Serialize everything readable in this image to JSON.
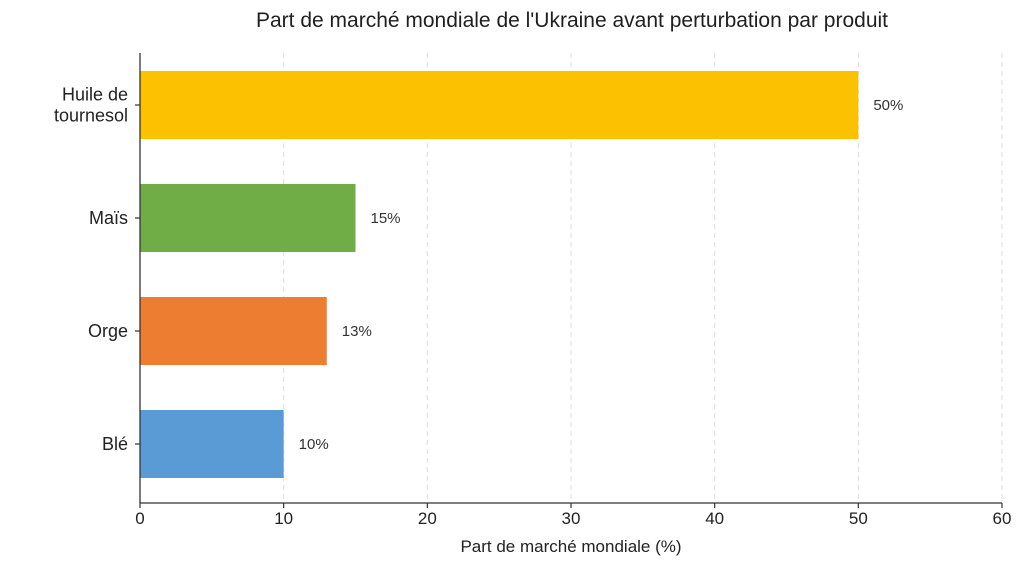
{
  "chart_data": {
    "type": "bar",
    "orientation": "horizontal",
    "title": "Part de marché mondiale de l'Ukraine avant perturbation par produit",
    "xlabel": "Part de marché mondiale (%)",
    "ylabel": "",
    "categories": [
      [
        "Huile de",
        "tournesol"
      ],
      [
        "Maïs"
      ],
      [
        "Orge"
      ],
      [
        "Blé"
      ]
    ],
    "values": [
      50,
      15,
      13,
      10
    ],
    "data_labels": [
      "50%",
      "15%",
      "13%",
      "10%"
    ],
    "colors": [
      "#fcc100",
      "#70ad47",
      "#ed7d31",
      "#5b9bd5"
    ],
    "xlim": [
      0,
      60
    ],
    "x_ticks": [
      0,
      10,
      20,
      30,
      40,
      50,
      60
    ],
    "x_tick_labels": [
      "0",
      "10",
      "20",
      "30",
      "40",
      "50",
      "60"
    ],
    "grid": "vertical dashed",
    "legend": "none"
  }
}
